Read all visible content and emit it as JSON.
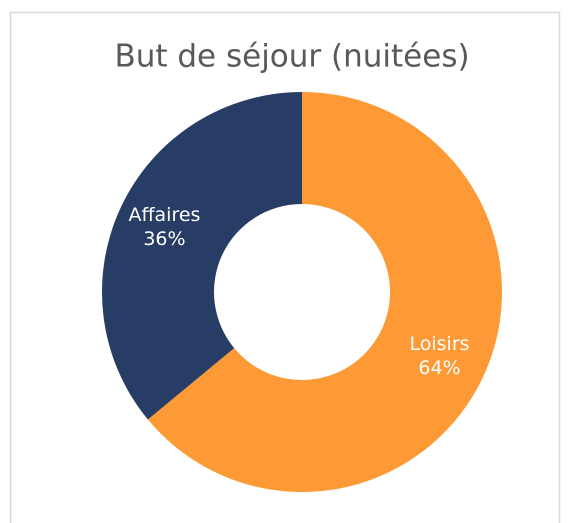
{
  "chart_data": {
    "type": "donut",
    "title": "But de séjour (nuitées)",
    "categories": [
      "Loisirs",
      "Affaires"
    ],
    "values": [
      64,
      36
    ],
    "value_labels": [
      "64%",
      "36%"
    ],
    "colors": [
      "#fd9a35",
      "#283d66"
    ]
  }
}
